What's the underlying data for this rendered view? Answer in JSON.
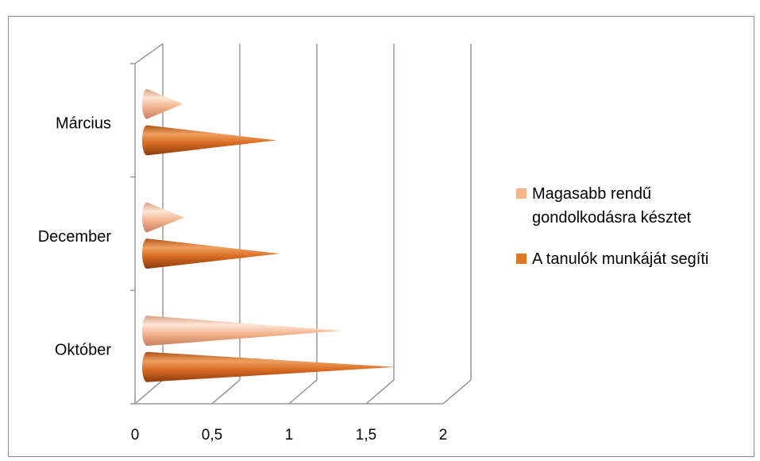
{
  "chart_data": {
    "type": "bar",
    "orientation": "horizontal",
    "style": "3d-cone",
    "title": "",
    "xlabel": "",
    "ylabel": "",
    "categories": [
      "Október",
      "December",
      "Március"
    ],
    "series": [
      {
        "name": "A tanulók munkáját segíti",
        "color": "#e0782a",
        "values": [
          1.6,
          0.85,
          0.83
        ]
      },
      {
        "name": "Magasabb rendű gondolkodásra késztet",
        "color": "#f5b48a",
        "values": [
          1.25,
          0.23,
          0.22
        ]
      }
    ],
    "xlim": [
      0,
      2
    ],
    "xticks": [
      {
        "value": 0,
        "label": "0"
      },
      {
        "value": 0.5,
        "label": "0,5"
      },
      {
        "value": 1,
        "label": "1"
      },
      {
        "value": 1.5,
        "label": "1,5"
      },
      {
        "value": 2,
        "label": "2"
      }
    ],
    "legend": {
      "placement": "right",
      "entries": [
        {
          "lines": [
            "Magasabb rendű",
            "gondolkodásra késztet"
          ],
          "color": "#f5b48a"
        },
        {
          "lines": [
            "A tanulók munkáját segíti"
          ],
          "color": "#e0782a"
        }
      ]
    },
    "grid": true
  }
}
